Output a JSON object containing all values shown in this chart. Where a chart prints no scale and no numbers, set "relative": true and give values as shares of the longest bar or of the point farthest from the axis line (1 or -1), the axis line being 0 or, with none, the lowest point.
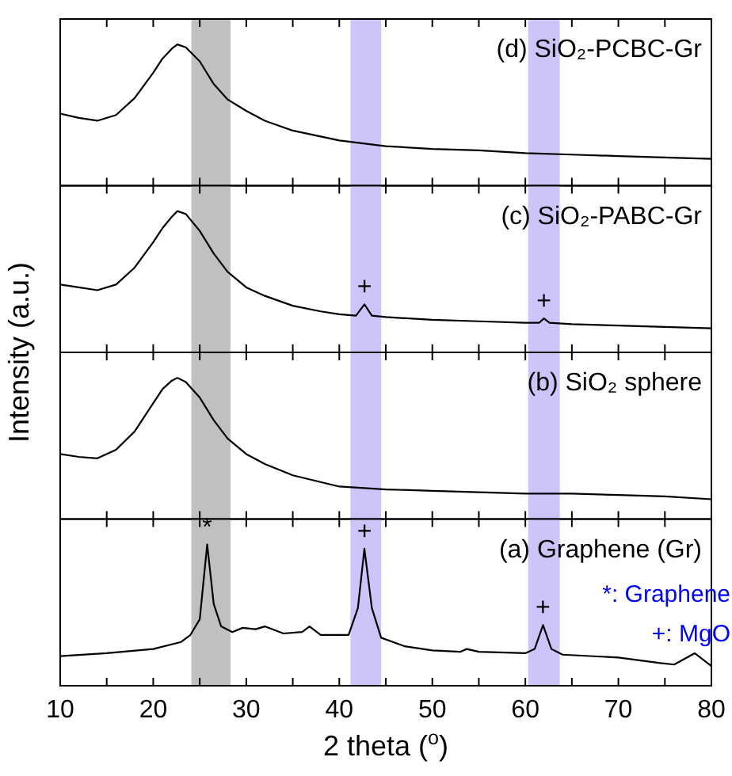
{
  "chart_data": [
    {
      "type": "line",
      "title": "(d) SiO₂-PCBC-Gr",
      "ylabel": "Intensity (a.u.)",
      "relative": true,
      "tick_labels": false,
      "x": [
        10,
        12,
        14,
        16,
        18,
        20,
        21,
        22,
        22.6,
        23.5,
        25,
        26.5,
        28,
        30,
        32,
        35,
        40,
        45,
        50,
        55,
        60,
        65,
        70,
        75,
        80
      ],
      "series": [
        {
          "color": "#000000",
          "values": [
            0.51,
            0.48,
            0.46,
            0.5,
            0.62,
            0.8,
            0.9,
            0.97,
            1,
            0.98,
            0.88,
            0.72,
            0.61,
            0.53,
            0.46,
            0.39,
            0.32,
            0.28,
            0.26,
            0.25,
            0.23,
            0.22,
            0.21,
            0.2,
            0.19
          ]
        }
      ],
      "xlim": [
        10,
        80
      ],
      "xticks": [
        10,
        {
          "value": 15,
          "label": null
        },
        20,
        {
          "value": 25,
          "label": null
        },
        30,
        {
          "value": 35,
          "label": null
        },
        40,
        {
          "value": 45,
          "label": null
        },
        50,
        {
          "value": 55,
          "label": null
        },
        60,
        {
          "value": 65,
          "label": null
        },
        70,
        {
          "value": 75,
          "label": null
        },
        80
      ],
      "bands": [
        {
          "axis": "x",
          "from": 24.1,
          "to": 28.3,
          "color": "#c0c0c0"
        },
        {
          "axis": "x",
          "from": 41.2,
          "to": 44.5,
          "color": "#cdc4fa"
        },
        {
          "axis": "x",
          "from": 60.3,
          "to": 63.7,
          "color": "#cdc4fa"
        }
      ]
    },
    {
      "type": "line",
      "title": "(c) SiO₂-PABC-Gr",
      "relative": true,
      "tick_labels": false,
      "x": [
        10,
        12,
        14,
        16,
        18,
        20,
        21,
        22,
        22.6,
        23.5,
        25,
        26.5,
        28,
        30,
        32,
        35,
        38,
        40,
        41.8,
        42.7,
        43.5,
        45,
        50,
        55,
        60,
        61.5,
        62,
        62.6,
        65,
        70,
        75,
        80
      ],
      "series": [
        {
          "color": "#000000",
          "values": [
            0.48,
            0.46,
            0.44,
            0.48,
            0.6,
            0.78,
            0.88,
            0.96,
            1,
            0.98,
            0.86,
            0.7,
            0.57,
            0.46,
            0.4,
            0.33,
            0.29,
            0.27,
            0.26,
            0.34,
            0.26,
            0.25,
            0.23,
            0.22,
            0.21,
            0.21,
            0.24,
            0.21,
            0.2,
            0.19,
            0.18,
            0.17
          ]
        }
      ],
      "xlim": [
        10,
        80
      ],
      "xticks": [
        10,
        {
          "value": 15,
          "label": null
        },
        20,
        {
          "value": 25,
          "label": null
        },
        30,
        {
          "value": 35,
          "label": null
        },
        40,
        {
          "value": 45,
          "label": null
        },
        50,
        {
          "value": 55,
          "label": null
        },
        60,
        {
          "value": 65,
          "label": null
        },
        70,
        {
          "value": 75,
          "label": null
        },
        80
      ],
      "bands": [
        {
          "axis": "x",
          "from": 24.1,
          "to": 28.3,
          "color": "#c0c0c0"
        },
        {
          "axis": "x",
          "from": 41.2,
          "to": 44.5,
          "color": "#cdc4fa"
        },
        {
          "axis": "x",
          "from": 60.3,
          "to": 63.7,
          "color": "#cdc4fa"
        }
      ],
      "annotations": [
        "+",
        "+"
      ]
    },
    {
      "type": "line",
      "title": "(b) SiO₂ sphere",
      "relative": true,
      "tick_labels": false,
      "x": [
        10,
        12,
        14,
        16,
        18,
        20,
        21,
        22,
        22.6,
        23.5,
        25,
        26.5,
        28,
        30,
        32,
        35,
        40,
        45,
        50,
        55,
        60,
        65,
        70,
        75,
        80
      ],
      "series": [
        {
          "color": "#000000",
          "values": [
            0.46,
            0.44,
            0.43,
            0.49,
            0.62,
            0.82,
            0.92,
            0.98,
            1,
            0.97,
            0.86,
            0.7,
            0.57,
            0.46,
            0.39,
            0.31,
            0.23,
            0.21,
            0.2,
            0.19,
            0.18,
            0.18,
            0.17,
            0.16,
            0.14
          ]
        }
      ],
      "xlim": [
        10,
        80
      ],
      "xticks": [
        10,
        {
          "value": 15,
          "label": null
        },
        20,
        {
          "value": 25,
          "label": null
        },
        30,
        {
          "value": 35,
          "label": null
        },
        40,
        {
          "value": 45,
          "label": null
        },
        50,
        {
          "value": 55,
          "label": null
        },
        60,
        {
          "value": 65,
          "label": null
        },
        70,
        {
          "value": 75,
          "label": null
        },
        80
      ],
      "bands": [
        {
          "axis": "x",
          "from": 24.1,
          "to": 28.3,
          "color": "#c0c0c0"
        },
        {
          "axis": "x",
          "from": 41.2,
          "to": 44.5,
          "color": "#cdc4fa"
        },
        {
          "axis": "x",
          "from": 60.3,
          "to": 63.7,
          "color": "#cdc4fa"
        }
      ]
    },
    {
      "type": "line",
      "title": "(a) Graphene (Gr)",
      "xlabel": "2 theta ($^{o}$)",
      "relative": true,
      "tick_labels": "x",
      "x": [
        10,
        15,
        20,
        23,
        24,
        25,
        25.8,
        26.5,
        27.3,
        28.5,
        29.6,
        31,
        32,
        34,
        36,
        36.8,
        38,
        41,
        42,
        42.7,
        43.5,
        44.5,
        47,
        50,
        53,
        53.7,
        55,
        60,
        61,
        61.9,
        62.8,
        64,
        70,
        74.5,
        76,
        78.2,
        80
      ],
      "series": [
        {
          "color": "#000000",
          "values": [
            0.21,
            0.23,
            0.26,
            0.31,
            0.36,
            0.47,
            1,
            0.58,
            0.42,
            0.38,
            0.41,
            0.4,
            0.42,
            0.37,
            0.38,
            0.42,
            0.36,
            0.36,
            0.55,
            0.97,
            0.55,
            0.34,
            0.28,
            0.25,
            0.24,
            0.26,
            0.24,
            0.23,
            0.26,
            0.43,
            0.26,
            0.22,
            0.2,
            0.16,
            0.15,
            0.23,
            0.14
          ]
        }
      ],
      "xlim": [
        10,
        80
      ],
      "xticks": [
        10,
        {
          "value": 15,
          "label": null
        },
        20,
        {
          "value": 25,
          "label": null
        },
        30,
        {
          "value": 35,
          "label": null
        },
        40,
        {
          "value": 45,
          "label": null
        },
        50,
        {
          "value": 55,
          "label": null
        },
        60,
        {
          "value": 65,
          "label": null
        },
        70,
        {
          "value": 75,
          "label": null
        },
        80
      ],
      "bands": [
        {
          "axis": "x",
          "from": 24.1,
          "to": 28.3,
          "color": "#c0c0c0"
        },
        {
          "axis": "x",
          "from": 41.2,
          "to": 44.5,
          "color": "#cdc4fa"
        },
        {
          "axis": "x",
          "from": 60.3,
          "to": 63.7,
          "color": "#cdc4fa"
        }
      ],
      "annotations": [
        "*",
        "+",
        "+",
        "*: Graphene",
        "+: MgO"
      ]
    }
  ]
}
